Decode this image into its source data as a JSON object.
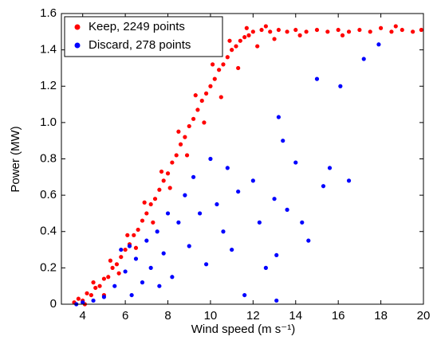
{
  "chart_data": {
    "type": "scatter",
    "x_label": "Wind speed (m s⁻¹)",
    "y_label": "Power (MW)",
    "xlim": [
      3,
      20
    ],
    "xticks": [
      4,
      6,
      8,
      10,
      12,
      14,
      16,
      18,
      20
    ],
    "ylim": [
      0,
      1.6
    ],
    "yticks": [
      0,
      0.2,
      0.4,
      0.6,
      0.8,
      {
        "value": 1,
        "label": "1.0"
      },
      1.2,
      1.4,
      1.6
    ],
    "legend": "upper left",
    "series": [
      {
        "name": "Keep, 2249 points",
        "color": "#ff0000",
        "x": [
          3.6,
          3.8,
          4.0,
          4.2,
          4.4,
          4.6,
          4.8,
          5.0,
          5.2,
          5.4,
          5.6,
          5.8,
          6.0,
          6.2,
          6.4,
          6.6,
          6.8,
          7.0,
          7.2,
          7.4,
          7.6,
          7.8,
          8.0,
          8.2,
          8.4,
          8.6,
          8.8,
          9.0,
          9.2,
          9.4,
          9.6,
          9.8,
          10.0,
          10.2,
          10.4,
          10.6,
          10.8,
          11.0,
          11.2,
          11.4,
          11.6,
          11.8,
          12.0,
          12.4,
          12.8,
          13.2,
          13.6,
          14.0,
          14.5,
          15.0,
          15.5,
          16.0,
          16.5,
          17.0,
          17.5,
          18.0,
          18.5,
          19.0,
          19.5,
          19.9,
          4.1,
          4.5,
          5.0,
          5.3,
          5.7,
          6.1,
          6.5,
          6.9,
          7.3,
          7.7,
          8.1,
          8.5,
          8.9,
          9.3,
          9.7,
          10.1,
          10.5,
          10.9,
          11.3,
          11.7,
          12.2,
          12.6,
          13.0,
          14.2,
          16.2,
          18.7
        ],
        "values": [
          0.01,
          0.03,
          0.02,
          0.06,
          0.05,
          0.09,
          0.1,
          0.14,
          0.15,
          0.2,
          0.22,
          0.26,
          0.3,
          0.33,
          0.38,
          0.41,
          0.46,
          0.5,
          0.55,
          0.58,
          0.63,
          0.68,
          0.72,
          0.78,
          0.82,
          0.88,
          0.92,
          0.98,
          1.02,
          1.07,
          1.12,
          1.16,
          1.2,
          1.24,
          1.29,
          1.32,
          1.36,
          1.4,
          1.42,
          1.45,
          1.47,
          1.48,
          1.5,
          1.51,
          1.5,
          1.51,
          1.5,
          1.51,
          1.5,
          1.51,
          1.5,
          1.51,
          1.5,
          1.51,
          1.5,
          1.52,
          1.5,
          1.51,
          1.5,
          1.51,
          0.0,
          0.12,
          0.05,
          0.24,
          0.17,
          0.38,
          0.31,
          0.56,
          0.45,
          0.73,
          0.64,
          0.95,
          0.82,
          1.15,
          1.0,
          1.32,
          1.14,
          1.45,
          1.3,
          1.52,
          1.42,
          1.53,
          1.46,
          1.48,
          1.48,
          1.53
        ]
      },
      {
        "name": "Discard, 278 points",
        "color": "#0000ff",
        "x": [
          3.7,
          4.0,
          4.5,
          5.0,
          5.5,
          5.8,
          6.0,
          6.3,
          6.5,
          6.8,
          7.0,
          7.2,
          7.5,
          7.8,
          8.0,
          8.2,
          8.5,
          8.8,
          9.0,
          9.2,
          9.5,
          9.8,
          10.0,
          10.3,
          10.6,
          10.8,
          11.0,
          11.3,
          11.6,
          12.0,
          12.3,
          12.6,
          13.0,
          13.1,
          13.2,
          13.4,
          13.6,
          14.0,
          14.3,
          14.6,
          15.0,
          15.3,
          15.6,
          16.1,
          16.5,
          17.2,
          17.9,
          13.1,
          7.6,
          6.2
        ],
        "values": [
          0.0,
          0.01,
          0.02,
          0.04,
          0.1,
          0.3,
          0.18,
          0.05,
          0.25,
          0.12,
          0.35,
          0.2,
          0.4,
          0.28,
          0.5,
          0.15,
          0.45,
          0.6,
          0.32,
          0.7,
          0.5,
          0.22,
          0.8,
          0.55,
          0.4,
          0.75,
          0.3,
          0.62,
          0.05,
          0.68,
          0.45,
          0.2,
          0.58,
          0.27,
          1.03,
          0.9,
          0.52,
          0.78,
          0.45,
          0.35,
          1.24,
          0.65,
          0.75,
          1.2,
          0.68,
          1.35,
          1.43,
          0.02,
          0.1,
          0.32
        ]
      }
    ]
  }
}
